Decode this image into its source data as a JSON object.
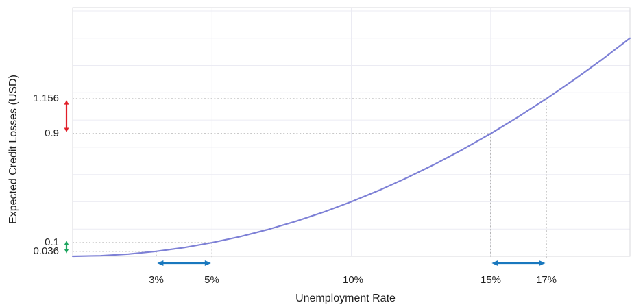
{
  "chart_data": {
    "type": "line",
    "title": "",
    "xlabel": "Unemployment Rate",
    "ylabel": "Expected Credit Losses (USD)",
    "x_range": [
      0,
      20
    ],
    "y_range": [
      0,
      1.825
    ],
    "grid": {
      "x_step_pct": 5,
      "y_step": 0.2,
      "grid_on": true
    },
    "legend": "none",
    "series": [
      {
        "name": "Expected credit losses curve",
        "x": [
          0,
          1,
          2,
          3,
          4,
          5,
          6,
          7,
          8,
          9,
          10,
          11,
          12,
          13,
          14,
          15,
          16,
          17,
          18,
          19,
          20
        ],
        "y": [
          0,
          0.004,
          0.016,
          0.036,
          0.064,
          0.1,
          0.144,
          0.196,
          0.256,
          0.324,
          0.4,
          0.484,
          0.576,
          0.676,
          0.784,
          0.9,
          1.024,
          1.156,
          1.296,
          1.444,
          1.6
        ]
      }
    ],
    "highlighted_points": [
      {
        "x": 3,
        "y": 0.036,
        "x_label": "3%",
        "y_label": "0.036"
      },
      {
        "x": 5,
        "y": 0.1,
        "x_label": "5%",
        "y_label": "0.1"
      },
      {
        "x": 15,
        "y": 0.9,
        "x_label": "15%",
        "y_label": "0.9"
      },
      {
        "x": 17,
        "y": 1.156,
        "x_label": "17%",
        "y_label": "1.156"
      }
    ],
    "x_tick_labels": [
      "3%",
      "5%",
      "10%",
      "15%",
      "17%"
    ],
    "x_tick_positions": [
      3,
      5,
      10,
      15,
      17
    ],
    "y_tick_labels": [
      "1.156",
      "0.9",
      "0.1",
      "0.036"
    ],
    "arrows": [
      {
        "name": "delta-ecl-high-arrow",
        "orient": "vertical",
        "from": 0.9,
        "to": 1.156,
        "color": "#e11e28"
      },
      {
        "name": "delta-ecl-low-arrow",
        "orient": "vertical",
        "from": 0.036,
        "to": 0.1,
        "color": "#1ea55f"
      },
      {
        "name": "delta-unemployment-low-arrow",
        "orient": "horizontal",
        "from": 3,
        "to": 5,
        "color": "#1978be"
      },
      {
        "name": "delta-unemployment-high-arrow",
        "orient": "horizontal",
        "from": 15,
        "to": 17,
        "color": "#1978be"
      }
    ]
  },
  "colors": {
    "curve": "#7d80d6",
    "gridline": "#ebebf3",
    "plot_border": "#d9d9de",
    "guide_dash": "#a6a6a6",
    "text": "#1f1f1f",
    "background": "#ffffff"
  }
}
